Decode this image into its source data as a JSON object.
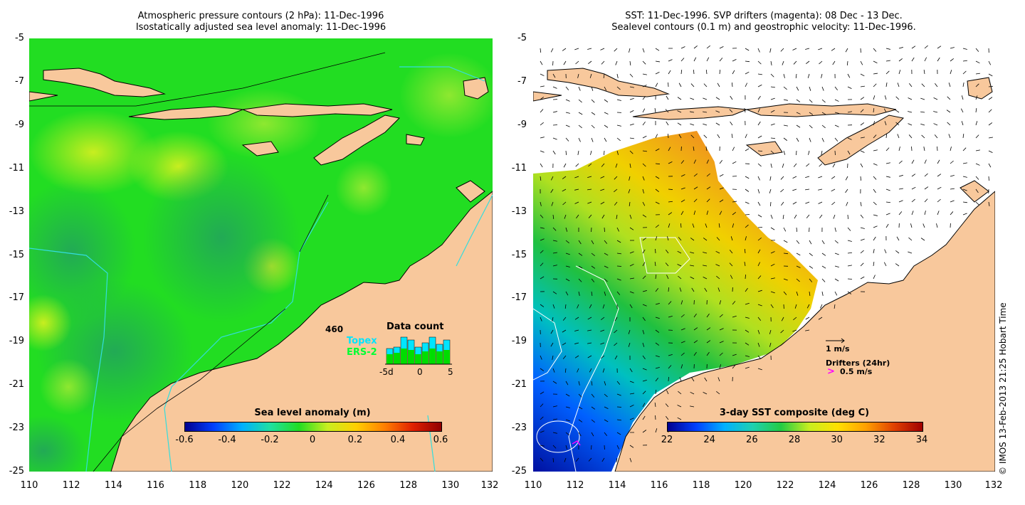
{
  "left_map": {
    "title_line1": "Atmospheric pressure contours (2 hPa): 11-Dec-1996",
    "title_line2": "Isostatically adjusted sea level anomaly: 11-Dec-1996",
    "y_ticks": [
      "-5",
      "-7",
      "-9",
      "-11",
      "-13",
      "-15",
      "-17",
      "-19",
      "-21",
      "-23",
      "-25"
    ],
    "x_ticks": [
      "110",
      "112",
      "114",
      "116",
      "118",
      "120",
      "122",
      "124",
      "126",
      "128",
      "130"
    ],
    "x_last_tick": "132",
    "data_count": {
      "number": "460",
      "title": "Data count",
      "series": [
        "Topex",
        "ERS-2"
      ],
      "axis_ticks": [
        "-5d",
        "0",
        "5"
      ],
      "topex_color": "#00e5ff",
      "ers2_color": "#00dd00",
      "topex_values": [
        0.55,
        0.6,
        0.95,
        0.85,
        0.6,
        0.75,
        0.95,
        0.7,
        0.85
      ],
      "ers2_values": [
        0.35,
        0.4,
        0.55,
        0.5,
        0.35,
        0.45,
        0.55,
        0.45,
        0.5
      ]
    },
    "colorbar": {
      "title": "Sea level anomaly (m)",
      "ticks": [
        "-0.6",
        "-0.4",
        "-0.2",
        "0",
        "0.2",
        "0.4",
        "0.6"
      ],
      "range": [
        -0.6,
        0.6
      ]
    }
  },
  "right_map": {
    "title_line1": "SST: 11-Dec-1996. SVP drifters (magenta): 08 Dec - 13 Dec.",
    "title_line2": "Sealevel contours (0.1 m) and geostrophic velocity: 11-Dec-1996.",
    "y_ticks": [
      "-5",
      "-7",
      "-9",
      "-11",
      "-13",
      "-15",
      "-17",
      "-19",
      "-21",
      "-23",
      "-25"
    ],
    "x_ticks": [
      "110",
      "112",
      "114",
      "116",
      "118",
      "120",
      "122",
      "124",
      "126",
      "128",
      "130",
      "132"
    ],
    "velocity_scale": "1 m/s",
    "drifters_label": "Drifters (24hr)",
    "drifter_scale": "0.5 m/s",
    "drifter_color": "#ff00ff",
    "colorbar": {
      "title": "3-day SST composite (deg C)",
      "ticks": [
        "22",
        "24",
        "26",
        "28",
        "30",
        "32",
        "34"
      ],
      "range": [
        22,
        34
      ]
    }
  },
  "credit": "© IMOS 13-Feb-2013 21:25 Hobart Time",
  "colors": {
    "land": "#f8c89c",
    "sla_base": "#22dd22",
    "sst_warm": "#f0a020",
    "coast_line": "#000000",
    "track_line": "#33dddd"
  }
}
